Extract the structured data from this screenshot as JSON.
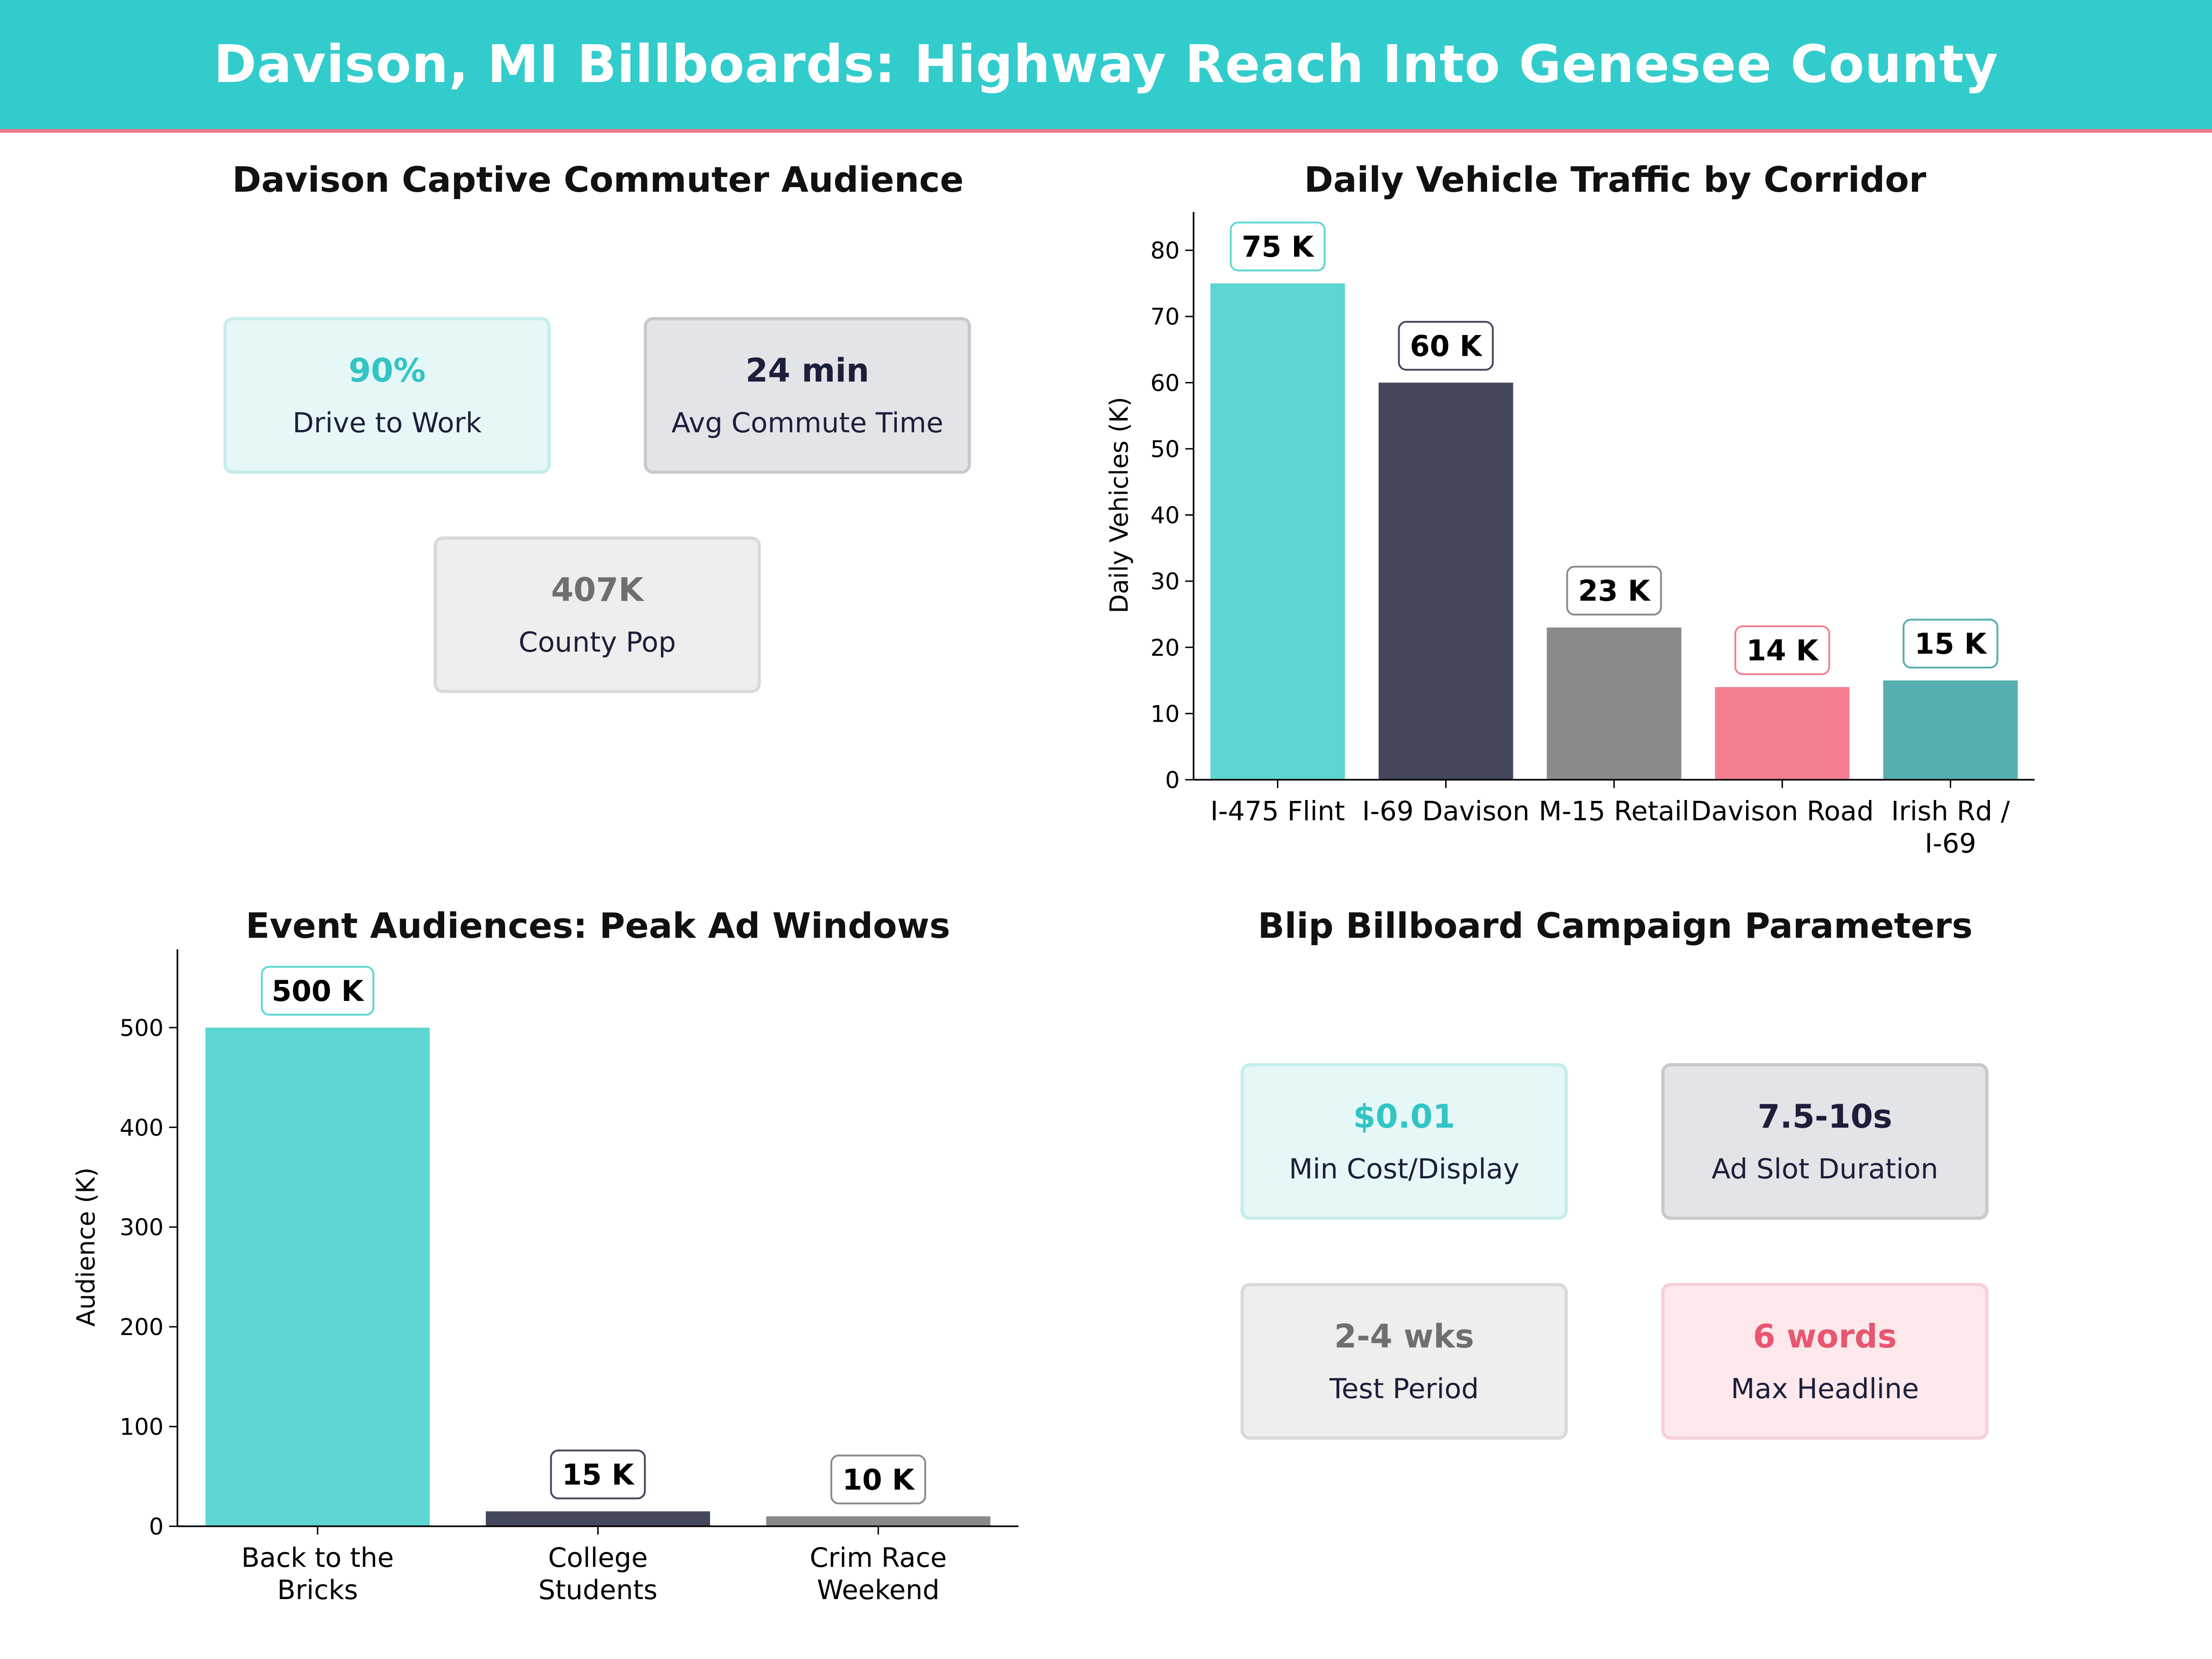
{
  "title": "Davison, MI Billboards: Highway Reach Into Genesee County",
  "colors": {
    "banner": "#33cccc",
    "banner_rule": "#ef7a8a",
    "teal": "#5dd6d3",
    "navy": "#44475c",
    "gray": "#8a8a8a",
    "pink": "#f47f91",
    "dark_teal": "#56aeae"
  },
  "commuter_panel": {
    "title": "Davison Captive Commuter Audience",
    "cards": [
      {
        "value": "90%",
        "label": "Drive to Work",
        "theme": "teal"
      },
      {
        "value": "24 min",
        "label": "Avg Commute Time",
        "theme": "navy"
      },
      {
        "value": "407K",
        "label": "County Pop",
        "theme": "gray"
      }
    ]
  },
  "campaign_panel": {
    "title": "Blip Billboard Campaign Parameters",
    "cards": [
      {
        "value": "$0.01",
        "label": "Min Cost/Display",
        "theme": "teal"
      },
      {
        "value": "7.5-10s",
        "label": "Ad Slot Duration",
        "theme": "navy"
      },
      {
        "value": "2-4 wks",
        "label": "Test Period",
        "theme": "gray"
      },
      {
        "value": "6 words",
        "label": "Max Headline",
        "theme": "pink"
      }
    ]
  },
  "chart_data": [
    {
      "type": "bar",
      "title": "Daily Vehicle Traffic by Corridor",
      "xlabel": "",
      "ylabel": "Daily Vehicles (K)",
      "categories": [
        "I-475 Flint",
        "I-69 Davison",
        "M-15 Retail",
        "Davison Road",
        "Irish Rd / I-69"
      ],
      "category_lines": [
        [
          "I-475 Flint"
        ],
        [
          "I-69 Davison"
        ],
        [
          "M-15 Retail"
        ],
        [
          "Davison Road"
        ],
        [
          "Irish Rd /",
          "I-69"
        ]
      ],
      "values": [
        75,
        60,
        23,
        14,
        15
      ],
      "data_labels": [
        "75 K",
        "60 K",
        "23 K",
        "14 K",
        "15 K"
      ],
      "bar_colors": [
        "#5dd6d3",
        "#44475c",
        "#8a8a8a",
        "#f47f91",
        "#56aeae"
      ],
      "label_border_colors": [
        "#5dd6d3",
        "#44475c",
        "#8a8a8a",
        "#f47f91",
        "#56aeae"
      ],
      "ylim": [
        0,
        83
      ],
      "yticks": [
        0,
        10,
        20,
        30,
        40,
        50,
        60,
        70,
        80
      ],
      "grid": false
    },
    {
      "type": "bar",
      "title": "Event Audiences: Peak Ad Windows",
      "xlabel": "",
      "ylabel": "Audience (K)",
      "categories": [
        "Back to the Bricks",
        "College Students",
        "Crim Race Weekend"
      ],
      "category_lines": [
        [
          "Back to the",
          "Bricks"
        ],
        [
          "College",
          "Students"
        ],
        [
          "Crim Race",
          "Weekend"
        ]
      ],
      "values": [
        500,
        15,
        10
      ],
      "data_labels": [
        "500 K",
        "15 K",
        "10 K"
      ],
      "bar_colors": [
        "#5dd6d3",
        "#44475c",
        "#8a8a8a"
      ],
      "label_border_colors": [
        "#5dd6d3",
        "#44475c",
        "#8a8a8a"
      ],
      "ylim": [
        0,
        560
      ],
      "yticks": [
        0,
        100,
        200,
        300,
        400,
        500
      ],
      "grid": false
    }
  ]
}
